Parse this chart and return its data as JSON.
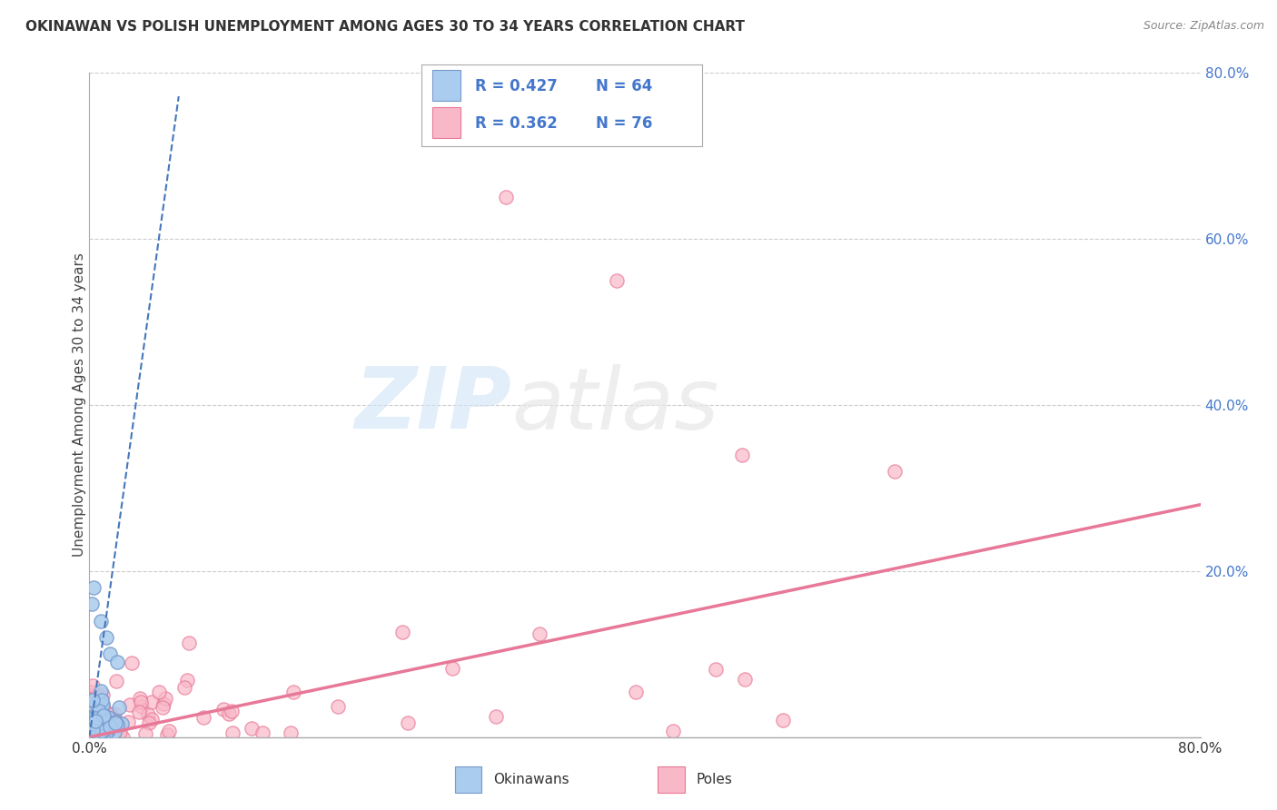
{
  "title": "OKINAWAN VS POLISH UNEMPLOYMENT AMONG AGES 30 TO 34 YEARS CORRELATION CHART",
  "source": "Source: ZipAtlas.com",
  "ylabel": "Unemployment Among Ages 30 to 34 years",
  "legend_label1": "Okinawans",
  "legend_label2": "Poles",
  "okinawan_color": "#aaccee",
  "okinawan_edge": "#7799cc",
  "polish_color": "#f8b8c8",
  "polish_edge": "#e87898",
  "okinawan_line_color": "#4477bb",
  "polish_line_color": "#e87898",
  "watermark_zip": "ZIP",
  "watermark_atlas": "atlas",
  "background_color": "#ffffff",
  "grid_color": "#dddddd",
  "xmin": 0.0,
  "xmax": 0.8,
  "ymin": 0.0,
  "ymax": 0.8,
  "legend_r_ok": "0.427",
  "legend_n_ok": "64",
  "legend_r_pol": "0.362",
  "legend_n_pol": "76",
  "title_fontsize": 11,
  "axis_label_color": "#4477cc",
  "axis_tick_color": "#4477cc"
}
